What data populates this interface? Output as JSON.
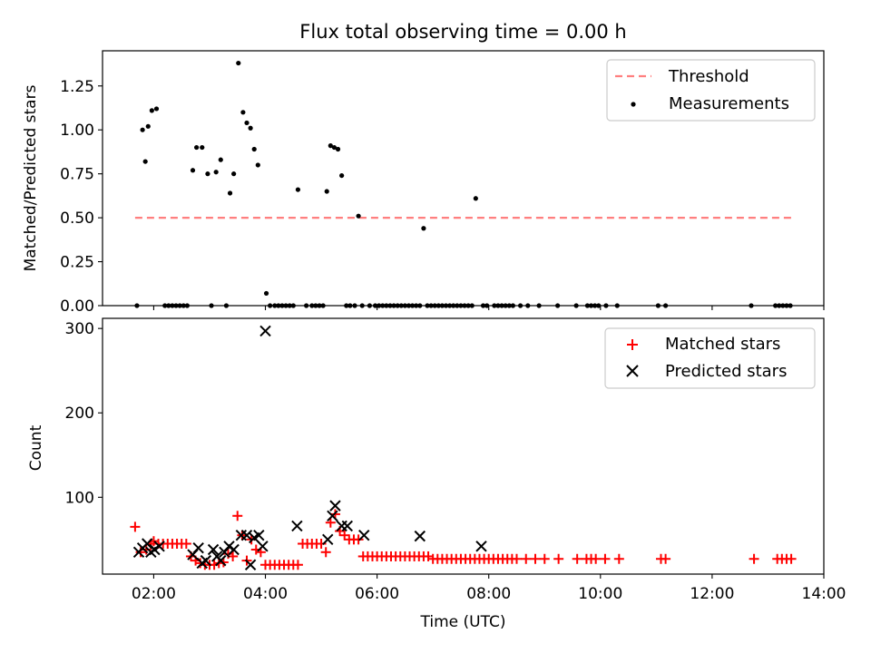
{
  "chart_data": [
    {
      "type": "scatter",
      "title": "Flux total observing time = 0.00 h",
      "xlabel": "",
      "ylabel": "Matched/Predicted stars",
      "xlim": [
        "01:05",
        "14:00"
      ],
      "ylim": [
        0,
        1.45
      ],
      "x_ticks": [
        "02:00",
        "04:00",
        "06:00",
        "08:00",
        "10:00",
        "12:00",
        "14:00"
      ],
      "x_ticks_labeled": false,
      "y_ticks": [
        0.0,
        0.25,
        0.5,
        0.75,
        1.0
      ],
      "y_tick_labels": [
        "0.00",
        "0.25",
        "0.50",
        "0.75",
        "1.00",
        "1.25"
      ],
      "y_tick_values": [
        0.0,
        0.25,
        0.5,
        0.75,
        1.0,
        1.25
      ],
      "grid": false,
      "legend_position": "upper right",
      "legend": [
        "Threshold",
        "Measurements"
      ],
      "threshold": {
        "name": "Threshold",
        "y": 0.5,
        "x_start": "01:40",
        "x_end": "13:25",
        "color": "#ff7f7f",
        "style": "dashed"
      },
      "series": [
        {
          "name": "Measurements",
          "color": "#000000",
          "x": [
            "01:42",
            "01:48",
            "01:51",
            "01:54",
            "01:58",
            "02:03",
            "02:12",
            "02:16",
            "02:20",
            "02:24",
            "02:28",
            "02:32",
            "02:36",
            "02:42",
            "02:46",
            "02:52",
            "02:58",
            "03:02",
            "03:07",
            "03:12",
            "03:18",
            "03:22",
            "03:26",
            "03:31",
            "03:36",
            "03:40",
            "03:44",
            "03:48",
            "03:52",
            "04:01",
            "04:05",
            "04:10",
            "04:14",
            "04:18",
            "04:22",
            "04:26",
            "04:30",
            "04:35",
            "04:44",
            "04:50",
            "04:54",
            "04:58",
            "05:02",
            "05:06",
            "05:10",
            "05:14",
            "05:18",
            "05:22",
            "05:27",
            "05:31",
            "05:36",
            "05:40",
            "05:44",
            "05:52",
            "05:58",
            "06:02",
            "06:06",
            "06:10",
            "06:14",
            "06:18",
            "06:22",
            "06:26",
            "06:30",
            "06:34",
            "06:38",
            "06:42",
            "06:46",
            "06:50",
            "06:54",
            "06:58",
            "07:02",
            "07:06",
            "07:10",
            "07:14",
            "07:18",
            "07:22",
            "07:26",
            "07:30",
            "07:34",
            "07:38",
            "07:42",
            "07:46",
            "07:54",
            "07:58",
            "08:06",
            "08:10",
            "08:14",
            "08:18",
            "08:22",
            "08:26",
            "08:34",
            "08:42",
            "08:54",
            "09:14",
            "09:34",
            "09:46",
            "09:50",
            "09:54",
            "09:58",
            "10:06",
            "10:18",
            "11:02",
            "11:10",
            "12:42",
            "13:08",
            "13:12",
            "13:16",
            "13:20",
            "13:24"
          ],
          "y": [
            0.0,
            1.0,
            0.82,
            1.02,
            1.11,
            1.12,
            0.0,
            0.0,
            0.0,
            0.0,
            0.0,
            0.0,
            0.0,
            0.77,
            0.9,
            0.9,
            0.75,
            0.0,
            0.76,
            0.83,
            0.0,
            0.64,
            0.75,
            1.38,
            1.1,
            1.04,
            1.01,
            0.89,
            0.8,
            0.07,
            0.0,
            0.0,
            0.0,
            0.0,
            0.0,
            0.0,
            0.0,
            0.66,
            0.0,
            0.0,
            0.0,
            0.0,
            0.0,
            0.65,
            0.91,
            0.9,
            0.89,
            0.74,
            0.0,
            0.0,
            0.0,
            0.51,
            0.0,
            0.0,
            0.0,
            0.0,
            0.0,
            0.0,
            0.0,
            0.0,
            0.0,
            0.0,
            0.0,
            0.0,
            0.0,
            0.0,
            0.0,
            0.44,
            0.0,
            0.0,
            0.0,
            0.0,
            0.0,
            0.0,
            0.0,
            0.0,
            0.0,
            0.0,
            0.0,
            0.0,
            0.0,
            0.61,
            0.0,
            0.0,
            0.0,
            0.0,
            0.0,
            0.0,
            0.0,
            0.0,
            0.0,
            0.0,
            0.0,
            0.0,
            0.0,
            0.0,
            0.0,
            0.0,
            0.0,
            0.0,
            0.0,
            0.0,
            0.0,
            0.0,
            0.0,
            0.0,
            0.0,
            0.0,
            0.0
          ]
        }
      ]
    },
    {
      "type": "scatter",
      "title": "",
      "xlabel": "Time (UTC)",
      "ylabel": "Count",
      "xlim": [
        "01:05",
        "14:00"
      ],
      "ylim": [
        9,
        312
      ],
      "x_ticks": [
        "02:00",
        "04:00",
        "06:00",
        "08:00",
        "10:00",
        "12:00",
        "14:00"
      ],
      "x_tick_labels": [
        "02:00",
        "04:00",
        "06:00",
        "08:00",
        "10:00",
        "12:00",
        "14:00"
      ],
      "y_ticks": [
        100,
        200,
        300
      ],
      "y_tick_labels": [
        "100",
        "200",
        "300"
      ],
      "grid": false,
      "legend_position": "upper right",
      "legend": [
        "Matched stars",
        "Predicted stars"
      ],
      "series": [
        {
          "name": "Matched stars",
          "marker": "+",
          "color": "#ff0000",
          "x": [
            "01:40",
            "01:46",
            "01:52",
            "01:57",
            "02:00",
            "02:05",
            "02:10",
            "02:15",
            "02:20",
            "02:25",
            "02:30",
            "02:35",
            "02:40",
            "02:45",
            "02:50",
            "02:55",
            "03:00",
            "03:05",
            "03:10",
            "03:15",
            "03:20",
            "03:25",
            "03:30",
            "03:35",
            "03:40",
            "03:45",
            "03:50",
            "03:55",
            "04:00",
            "04:05",
            "04:10",
            "04:15",
            "04:20",
            "04:25",
            "04:30",
            "04:35",
            "04:40",
            "04:45",
            "04:50",
            "04:55",
            "05:00",
            "05:05",
            "05:10",
            "05:15",
            "05:20",
            "05:25",
            "05:30",
            "05:35",
            "05:40",
            "05:45",
            "05:50",
            "05:55",
            "06:00",
            "06:05",
            "06:10",
            "06:15",
            "06:20",
            "06:25",
            "06:30",
            "06:35",
            "06:40",
            "06:45",
            "06:50",
            "06:55",
            "07:00",
            "07:05",
            "07:10",
            "07:15",
            "07:20",
            "07:25",
            "07:30",
            "07:35",
            "07:40",
            "07:45",
            "07:50",
            "07:55",
            "08:00",
            "08:05",
            "08:10",
            "08:15",
            "08:20",
            "08:25",
            "08:30",
            "08:40",
            "08:50",
            "09:00",
            "09:15",
            "09:35",
            "09:45",
            "09:50",
            "09:55",
            "10:05",
            "10:20",
            "11:05",
            "11:10",
            "12:45",
            "13:10",
            "13:15",
            "13:20",
            "13:25"
          ],
          "y": [
            65,
            35,
            38,
            45,
            48,
            45,
            45,
            45,
            45,
            45,
            45,
            45,
            30,
            25,
            22,
            20,
            20,
            20,
            22,
            23,
            33,
            30,
            78,
            55,
            25,
            50,
            38,
            35,
            20,
            20,
            20,
            20,
            20,
            20,
            20,
            20,
            45,
            45,
            45,
            45,
            45,
            35,
            70,
            80,
            60,
            55,
            50,
            50,
            50,
            30,
            30,
            30,
            30,
            30,
            30,
            30,
            30,
            30,
            30,
            30,
            30,
            30,
            30,
            30,
            27,
            27,
            27,
            27,
            27,
            27,
            27,
            27,
            27,
            27,
            27,
            27,
            27,
            27,
            27,
            27,
            27,
            27,
            27,
            27,
            27,
            27,
            27,
            27,
            27,
            27,
            27,
            27,
            27,
            27,
            27,
            27,
            27,
            27,
            27,
            27
          ]
        },
        {
          "name": "Predicted stars",
          "marker": "x",
          "color": "#000000",
          "x": [
            "01:44",
            "01:48",
            "01:53",
            "01:57",
            "02:01",
            "02:06",
            "02:42",
            "02:48",
            "02:52",
            "02:56",
            "03:04",
            "03:08",
            "03:12",
            "03:16",
            "03:21",
            "03:26",
            "03:34",
            "03:40",
            "03:44",
            "03:48",
            "03:53",
            "03:57",
            "04:00",
            "04:34",
            "05:07",
            "05:12",
            "05:15",
            "05:22",
            "05:28",
            "05:46",
            "06:46",
            "07:52"
          ],
          "y": [
            35,
            40,
            45,
            35,
            38,
            42,
            32,
            40,
            22,
            25,
            38,
            30,
            25,
            35,
            42,
            38,
            55,
            55,
            20,
            52,
            55,
            42,
            297,
            66,
            50,
            78,
            90,
            66,
            66,
            55,
            54,
            42
          ]
        }
      ]
    }
  ]
}
